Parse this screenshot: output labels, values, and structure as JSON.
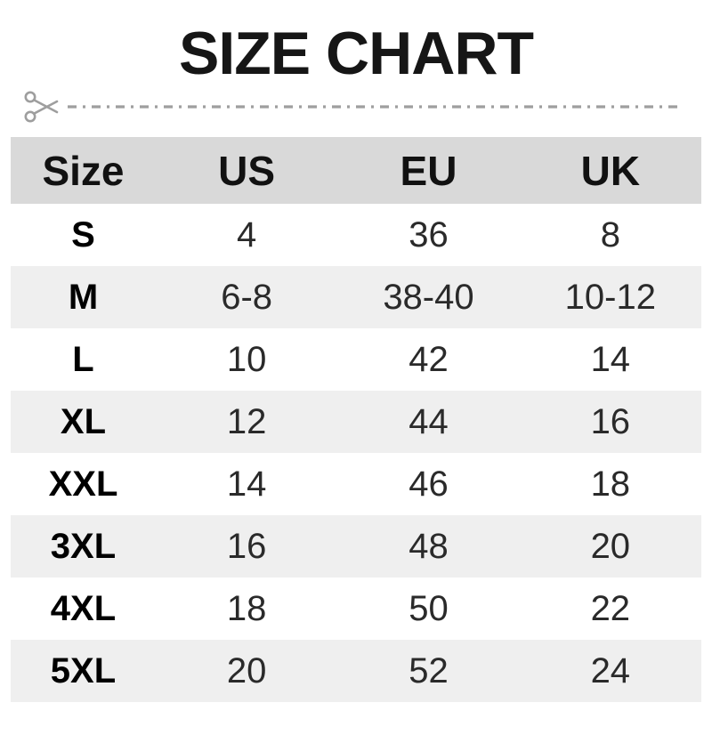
{
  "title": "SIZE CHART",
  "icons": {
    "cut": "scissors-icon",
    "line": "dash-dot-line"
  },
  "colors": {
    "page_bg": "#ffffff",
    "header_bg": "#d9d9d9",
    "stripe_bg": "#efefef",
    "text": "#1c1c1c",
    "cut_line": "#9e9e9e"
  },
  "chart_data": {
    "type": "table",
    "title": "SIZE CHART",
    "columns": [
      "Size",
      "US",
      "EU",
      "UK"
    ],
    "rows": [
      [
        "S",
        "4",
        "36",
        "8"
      ],
      [
        "M",
        "6-8",
        "38-40",
        "10-12"
      ],
      [
        "L",
        "10",
        "42",
        "14"
      ],
      [
        "XL",
        "12",
        "44",
        "16"
      ],
      [
        "XXL",
        "14",
        "46",
        "18"
      ],
      [
        "3XL",
        "16",
        "48",
        "20"
      ],
      [
        "4XL",
        "18",
        "50",
        "22"
      ],
      [
        "5XL",
        "20",
        "52",
        "24"
      ]
    ],
    "layout_hints": {
      "header_background": "#d9d9d9",
      "zebra_stripe_background": "#efefef",
      "stripe_rows": [
        "M",
        "XL",
        "3XL",
        "5XL"
      ]
    }
  }
}
